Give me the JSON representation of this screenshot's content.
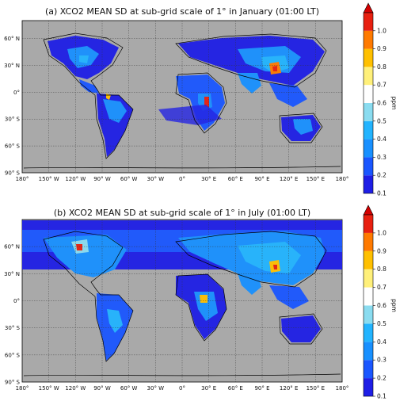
{
  "panels": [
    {
      "id": "a",
      "title": "(a) XCO2 MEAN SD at sub-grid scale of 1° in January (01:00 LT)",
      "month": "January"
    },
    {
      "id": "b",
      "title": "(b) XCO2 MEAN SD at sub-grid scale of 1° in July (01:00 LT)",
      "month": "July"
    }
  ],
  "lon_ticks": [
    "180°",
    "150° W",
    "120° W",
    "90° W",
    "60° W",
    "30° W",
    "0°",
    "30° E",
    "60° E",
    "90° E",
    "120° E",
    "150° E",
    "180°"
  ],
  "lat_ticks": [
    "90° S",
    "60° S",
    "30° S",
    "0°",
    "30° N",
    "60° N"
  ],
  "colorbar": {
    "unit": "ppm",
    "ticks": [
      "0.1",
      "0.2",
      "0.3",
      "0.4",
      "0.5",
      "0.6",
      "0.7",
      "0.8",
      "0.9",
      "1.0"
    ],
    "colors": [
      "#1e1ee6",
      "#1a56ff",
      "#1890ff",
      "#22b4ff",
      "#8adcf0",
      "#ffffff",
      "#fff07a",
      "#ffc000",
      "#ff7a00",
      "#e82010"
    ],
    "extend_color": "#d40000"
  },
  "colors": {
    "land_nodata": "#a9a9a9",
    "ocean": "#a9a9a9",
    "coast": "#000000"
  }
}
